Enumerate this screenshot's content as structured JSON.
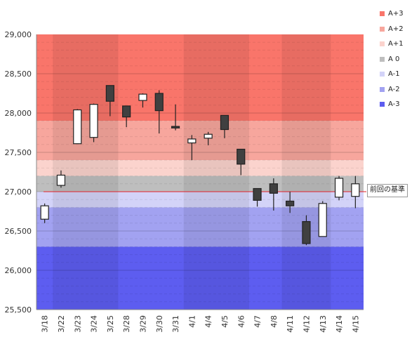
{
  "chart_data": {
    "type": "candlestick",
    "ylim": [
      25500,
      29000
    ],
    "yticks": [
      "25,500",
      "26,000",
      "26,500",
      "27,000",
      "27,500",
      "28,000",
      "28,500",
      "29,000"
    ],
    "ytick_values": [
      25500,
      26000,
      26500,
      27000,
      27500,
      28000,
      28500,
      29000
    ],
    "categories": [
      "3/18",
      "3/22",
      "3/23",
      "3/24",
      "3/25",
      "3/28",
      "3/29",
      "3/30",
      "3/31",
      "4/1",
      "4/4",
      "4/5",
      "4/6",
      "4/7",
      "4/8",
      "4/11",
      "4/12",
      "4/13",
      "4/14",
      "4/15"
    ],
    "ohlc": [
      {
        "open": 26650,
        "high": 26850,
        "low": 26600,
        "close": 26820
      },
      {
        "open": 27080,
        "high": 27270,
        "low": 27050,
        "close": 27210
      },
      {
        "open": 27610,
        "high": 28050,
        "low": 27610,
        "close": 28040
      },
      {
        "open": 27690,
        "high": 28120,
        "low": 27630,
        "close": 28110
      },
      {
        "open": 28350,
        "high": 28350,
        "low": 27960,
        "close": 28150
      },
      {
        "open": 28090,
        "high": 28090,
        "low": 27820,
        "close": 27950
      },
      {
        "open": 28160,
        "high": 28250,
        "low": 28070,
        "close": 28240
      },
      {
        "open": 28250,
        "high": 28290,
        "low": 27740,
        "close": 28030
      },
      {
        "open": 27830,
        "high": 28110,
        "low": 27780,
        "close": 27810
      },
      {
        "open": 27620,
        "high": 27720,
        "low": 27400,
        "close": 27670
      },
      {
        "open": 27680,
        "high": 27760,
        "low": 27590,
        "close": 27730
      },
      {
        "open": 27970,
        "high": 27970,
        "low": 27680,
        "close": 27790
      },
      {
        "open": 27540,
        "high": 27540,
        "low": 27210,
        "close": 27350
      },
      {
        "open": 27040,
        "high": 27040,
        "low": 26810,
        "close": 26890
      },
      {
        "open": 27100,
        "high": 27170,
        "low": 26760,
        "close": 26980
      },
      {
        "open": 26880,
        "high": 27000,
        "low": 26730,
        "close": 26820
      },
      {
        "open": 26620,
        "high": 26700,
        "low": 26320,
        "close": 26340
      },
      {
        "open": 26430,
        "high": 26880,
        "low": 26430,
        "close": 26850
      },
      {
        "open": 26930,
        "high": 27200,
        "low": 26890,
        "close": 27170
      },
      {
        "open": 26940,
        "high": 27200,
        "low": 26790,
        "close": 27100
      }
    ],
    "bands": [
      {
        "name": "A+3",
        "from": 27900,
        "to": 29000,
        "color": "#f9756a"
      },
      {
        "name": "A+2",
        "from": 27400,
        "to": 27900,
        "color": "#f7a69d"
      },
      {
        "name": "A+1",
        "from": 27200,
        "to": 27400,
        "color": "#fbd3cd"
      },
      {
        "name": "A 0",
        "from": 27000,
        "to": 27200,
        "color": "#bebebe"
      },
      {
        "name": "A-1",
        "from": 26800,
        "to": 27000,
        "color": "#d3d3f8"
      },
      {
        "name": "A-2",
        "from": 26300,
        "to": 26800,
        "color": "#a2a2f1"
      },
      {
        "name": "A-3",
        "from": 25500,
        "to": 26300,
        "color": "#5d5df0"
      }
    ],
    "legend_placement": "right",
    "reference_line": {
      "label": "前回の基準",
      "value": 27000,
      "color": "#e0202a"
    },
    "grid": true,
    "up_color": "#ffffff",
    "down_color": "#404040"
  }
}
